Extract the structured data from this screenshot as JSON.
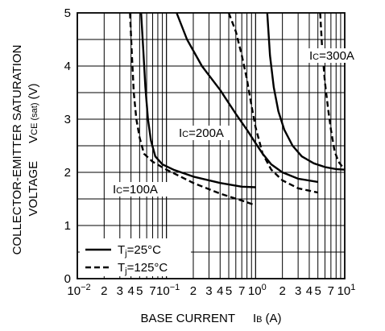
{
  "chart_data": {
    "type": "line",
    "x_scale": "log",
    "ylim": [
      0,
      5
    ],
    "xlim": [
      0.01,
      10
    ],
    "grid": true,
    "ylabel_line1": "COLLECTOR-EMITTER SATURATION",
    "ylabel_line2_main": "VOLTAGE",
    "ylabel_symbol": "V",
    "ylabel_symbol_sub": "CE (sat)",
    "ylabel_unit": "(V)",
    "xlabel_main": "BASE CURRENT",
    "xlabel_symbol": "I",
    "xlabel_symbol_sub": "B",
    "xlabel_unit": "(A)",
    "y_ticks": [
      {
        "value": 0,
        "label": "0"
      },
      {
        "value": 1,
        "label": "1"
      },
      {
        "value": 2,
        "label": "2"
      },
      {
        "value": 3,
        "label": "3"
      },
      {
        "value": 4,
        "label": "4"
      },
      {
        "value": 5,
        "label": "5"
      }
    ],
    "x_ticks": [
      {
        "value": 0.01,
        "label": "10",
        "exp": "−2"
      },
      {
        "value": 0.02,
        "label": "2"
      },
      {
        "value": 0.03,
        "label": "3"
      },
      {
        "value": 0.04,
        "label": "4"
      },
      {
        "value": 0.05,
        "label": "5"
      },
      {
        "value": 0.07,
        "label": "7"
      },
      {
        "value": 0.1,
        "label": "10",
        "exp": "−1"
      },
      {
        "value": 0.2,
        "label": "2"
      },
      {
        "value": 0.3,
        "label": "3"
      },
      {
        "value": 0.4,
        "label": "4"
      },
      {
        "value": 0.5,
        "label": "5"
      },
      {
        "value": 0.7,
        "label": "7"
      },
      {
        "value": 1,
        "label": "10",
        "exp": "0"
      },
      {
        "value": 2,
        "label": "2"
      },
      {
        "value": 3,
        "label": "3"
      },
      {
        "value": 4,
        "label": "4"
      },
      {
        "value": 5,
        "label": "5"
      },
      {
        "value": 7,
        "label": "7"
      },
      {
        "value": 10,
        "label": "10",
        "exp": "1"
      }
    ],
    "legend": {
      "position": "bottom-left",
      "entries": [
        {
          "style": "solid",
          "symbol": "T",
          "sub": "j",
          "text": "=25°C"
        },
        {
          "style": "dashed",
          "symbol": "T",
          "sub": "j",
          "text": "=125°C"
        }
      ]
    },
    "annotations": [
      {
        "symbol": "I",
        "sub": "C",
        "text": "=100A"
      },
      {
        "symbol": "I",
        "sub": "C",
        "text": "=200A"
      },
      {
        "symbol": "I",
        "sub": "C",
        "text": "=300A"
      }
    ],
    "series": [
      {
        "group": "IC=100A",
        "tj": "25",
        "style": "solid",
        "x": [
          0.052,
          0.055,
          0.058,
          0.062,
          0.067,
          0.075,
          0.09,
          0.12,
          0.2,
          0.4,
          0.7,
          1.0
        ],
        "y": [
          5.0,
          4.3,
          3.6,
          3.0,
          2.6,
          2.3,
          2.15,
          2.05,
          1.92,
          1.8,
          1.73,
          1.72
        ]
      },
      {
        "group": "IC=100A",
        "tj": "125",
        "style": "dashed",
        "x": [
          0.039,
          0.041,
          0.043,
          0.046,
          0.05,
          0.056,
          0.07,
          0.1,
          0.2,
          0.4,
          0.7,
          1.0
        ],
        "y": [
          5.0,
          4.2,
          3.5,
          3.0,
          2.65,
          2.35,
          2.2,
          2.05,
          1.8,
          1.6,
          1.47,
          1.38
        ]
      },
      {
        "group": "IC=200A",
        "tj": "25",
        "style": "solid",
        "x": [
          0.13,
          0.17,
          0.25,
          0.4,
          0.6,
          0.8,
          1.0,
          1.2,
          1.5,
          2.0,
          3.0,
          5.0
        ],
        "y": [
          5.0,
          4.5,
          4.0,
          3.55,
          3.1,
          2.8,
          2.55,
          2.35,
          2.15,
          2.0,
          1.88,
          1.82
        ]
      },
      {
        "group": "IC=200A",
        "tj": "125",
        "style": "dashed",
        "x": [
          0.5,
          0.6,
          0.7,
          0.8,
          0.9,
          1.0,
          1.2,
          1.5,
          2.0,
          3.0,
          5.0
        ],
        "y": [
          5.0,
          4.65,
          4.2,
          3.75,
          3.25,
          2.85,
          2.35,
          2.05,
          1.85,
          1.7,
          1.62
        ]
      },
      {
        "group": "IC=300A",
        "tj": "25",
        "style": "solid",
        "x": [
          1.35,
          1.45,
          1.6,
          1.8,
          2.1,
          2.6,
          3.3,
          4.5,
          6.0,
          8.0,
          10.0
        ],
        "y": [
          5.0,
          4.2,
          3.6,
          3.15,
          2.8,
          2.5,
          2.3,
          2.17,
          2.1,
          2.06,
          2.05
        ]
      },
      {
        "group": "IC=300A",
        "tj": "125",
        "style": "dashed",
        "x": [
          5.3,
          5.6,
          6.0,
          6.5,
          7.0,
          7.7,
          8.5,
          10.0
        ],
        "y": [
          5.0,
          4.3,
          3.7,
          3.2,
          2.8,
          2.4,
          2.2,
          2.05
        ]
      }
    ]
  }
}
